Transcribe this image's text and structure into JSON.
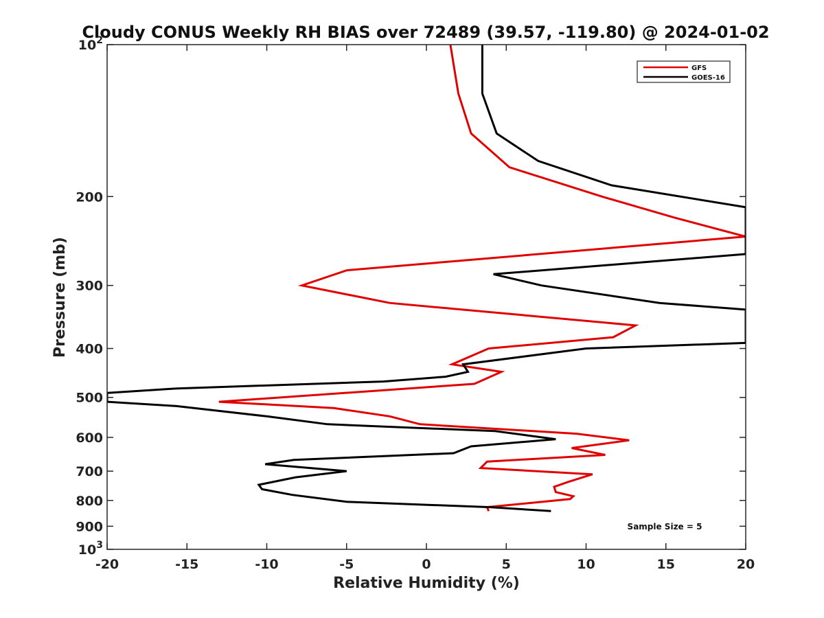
{
  "chart_data": {
    "type": "line",
    "title": "Cloudy CONUS Weekly RH BIAS over 72489 (39.57, -119.80) @ 2024-01-02",
    "xlabel": "Relative Humidity (%)",
    "ylabel": "Pressure (mb)",
    "xlim": [
      -20,
      20
    ],
    "ylim": [
      100,
      1000
    ],
    "y_scale": "log",
    "y_reversed": true,
    "grid": false,
    "x_ticks": [
      -20,
      -15,
      -10,
      -5,
      0,
      5,
      10,
      15,
      20
    ],
    "y_ticks": [
      {
        "value": 100,
        "base": "10",
        "exp": "2"
      },
      {
        "value": 200,
        "label": "200"
      },
      {
        "value": 300,
        "label": "300"
      },
      {
        "value": 400,
        "label": "400"
      },
      {
        "value": 500,
        "label": "500"
      },
      {
        "value": 600,
        "label": "600"
      },
      {
        "value": 700,
        "label": "700"
      },
      {
        "value": 800,
        "label": "800"
      },
      {
        "value": 900,
        "label": "900"
      },
      {
        "value": 1000,
        "base": "10",
        "exp": "3"
      }
    ],
    "legend_position": "top-right",
    "annotation": "Sample Size = 5",
    "series": [
      {
        "name": "GFS",
        "color": "#e00000",
        "points": [
          [
            1.5,
            100
          ],
          [
            2.0,
            125
          ],
          [
            2.8,
            150
          ],
          [
            5.2,
            175
          ],
          [
            11.0,
            200
          ],
          [
            15.5,
            220
          ],
          [
            20.0,
            240
          ],
          [
            -5.0,
            280
          ],
          [
            -7.8,
            300
          ],
          [
            -2.3,
            325
          ],
          [
            13.1,
            360
          ],
          [
            11.7,
            380
          ],
          [
            3.9,
            400
          ],
          [
            1.6,
            430
          ],
          [
            4.7,
            445
          ],
          [
            3.0,
            470
          ],
          [
            -13.0,
            510
          ],
          [
            -5.8,
            525
          ],
          [
            -2.3,
            545
          ],
          [
            -0.4,
            565
          ],
          [
            9.4,
            590
          ],
          [
            12.7,
            608
          ],
          [
            9.1,
            630
          ],
          [
            11.2,
            650
          ],
          [
            3.8,
            670
          ],
          [
            3.4,
            690
          ],
          [
            10.4,
            710
          ],
          [
            8.9,
            735
          ],
          [
            8.0,
            752
          ],
          [
            8.1,
            770
          ],
          [
            9.2,
            785
          ],
          [
            9.0,
            795
          ],
          [
            3.8,
            825
          ],
          [
            3.9,
            840
          ]
        ]
      },
      {
        "name": "GOES-16",
        "color": "#000000",
        "points": [
          [
            3.5,
            100
          ],
          [
            3.5,
            125
          ],
          [
            4.4,
            150
          ],
          [
            7.0,
            170
          ],
          [
            11.6,
            190
          ],
          [
            20.0,
            210
          ],
          [
            20.0,
            260
          ],
          [
            4.2,
            285
          ],
          [
            7.2,
            300
          ],
          [
            14.6,
            325
          ],
          [
            20.0,
            335
          ],
          [
            20.0,
            390
          ],
          [
            10.0,
            400
          ],
          [
            2.3,
            430
          ],
          [
            2.6,
            445
          ],
          [
            1.2,
            455
          ],
          [
            -2.7,
            465
          ],
          [
            -15.6,
            480
          ],
          [
            -20.0,
            490
          ],
          [
            -20.0,
            510
          ],
          [
            -15.7,
            520
          ],
          [
            -10.0,
            545
          ],
          [
            -6.2,
            565
          ],
          [
            4.3,
            583
          ],
          [
            8.1,
            605
          ],
          [
            2.8,
            625
          ],
          [
            1.7,
            645
          ],
          [
            -8.3,
            665
          ],
          [
            -10.1,
            678
          ],
          [
            -5.0,
            700
          ],
          [
            -8.2,
            720
          ],
          [
            -10.5,
            745
          ],
          [
            -10.3,
            760
          ],
          [
            -8.4,
            780
          ],
          [
            -5.0,
            805
          ],
          [
            4.0,
            825
          ],
          [
            7.8,
            840
          ]
        ]
      }
    ]
  }
}
